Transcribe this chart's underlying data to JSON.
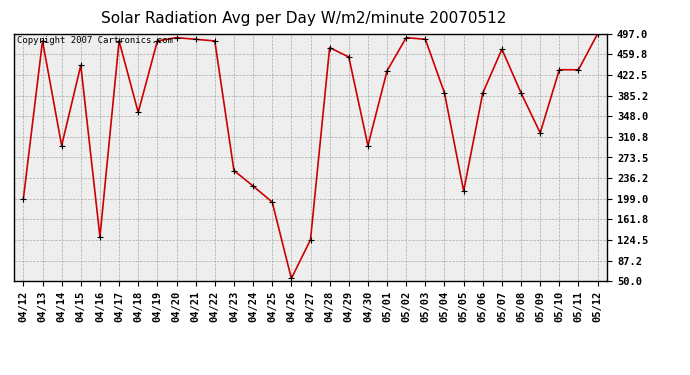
{
  "title": "Solar Radiation Avg per Day W/m2/minute 20070512",
  "copyright": "Copyright 2007 Cartronics.com",
  "dates": [
    "04/12",
    "04/13",
    "04/14",
    "04/15",
    "04/16",
    "04/17",
    "04/18",
    "04/19",
    "04/20",
    "04/21",
    "04/22",
    "04/23",
    "04/24",
    "04/25",
    "04/26",
    "04/27",
    "04/28",
    "04/29",
    "04/30",
    "05/01",
    "05/02",
    "05/03",
    "05/04",
    "05/05",
    "05/06",
    "05/07",
    "05/08",
    "05/09",
    "05/10",
    "05/11",
    "05/12"
  ],
  "values": [
    199.0,
    484.0,
    295.0,
    440.0,
    130.0,
    484.0,
    355.0,
    484.0,
    490.0,
    487.0,
    484.0,
    250.0,
    222.0,
    193.0,
    55.0,
    125.0,
    472.0,
    455.0,
    295.0,
    430.0,
    490.0,
    487.0,
    390.0,
    213.0,
    390.0,
    469.0,
    390.0,
    318.0,
    432.0,
    432.0,
    497.0
  ],
  "ylim": [
    50.0,
    497.0
  ],
  "yticks": [
    50.0,
    87.2,
    124.5,
    161.8,
    199.0,
    236.2,
    273.5,
    310.8,
    348.0,
    385.2,
    422.5,
    459.8,
    497.0
  ],
  "line_color": "#cc0000",
  "marker": "+",
  "marker_size": 4,
  "background_color": "#ffffff",
  "plot_bg_color": "#eeeeee",
  "grid_color": "#aaaaaa",
  "title_fontsize": 11,
  "tick_fontsize": 7.5,
  "copyright_fontsize": 6.5
}
